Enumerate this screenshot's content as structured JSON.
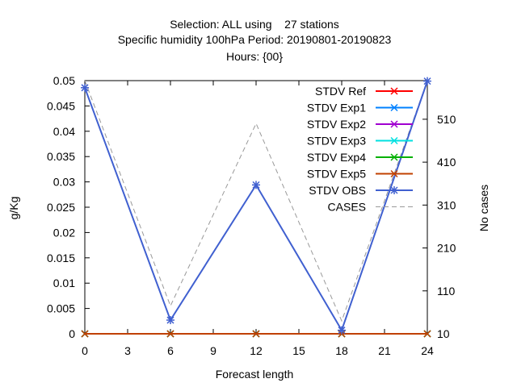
{
  "chart_data": {
    "type": "line",
    "title_lines": [
      "Selection: ALL using    27 stations",
      "Specific humidity 100hPa   Period: 20190801-20190823",
      "Hours: {00}"
    ],
    "xlabel": "Forecast length",
    "ylabel": "g/Kg",
    "y2label": "No cases",
    "xlim": [
      0,
      24
    ],
    "ylim": [
      0,
      0.05
    ],
    "y2lim": [
      10,
      600
    ],
    "x_ticks": [
      0,
      3,
      6,
      9,
      12,
      15,
      18,
      21,
      24
    ],
    "y_ticks": [
      0,
      0.005,
      0.01,
      0.015,
      0.02,
      0.025,
      0.03,
      0.035,
      0.04,
      0.045,
      0.05
    ],
    "y_tick_labels": [
      "0",
      "0.005",
      "0.01",
      "0.015",
      "0.02",
      "0.025",
      "0.03",
      "0.035",
      "0.04",
      "0.045",
      "0.05"
    ],
    "y2_ticks": [
      10,
      110,
      210,
      310,
      410,
      510
    ],
    "legend_position": "top-right",
    "grid": false,
    "x": [
      0,
      6,
      12,
      18,
      24
    ],
    "series": [
      {
        "name": "STDV Ref",
        "color": "#ff0000",
        "marker": "x",
        "axis": "y",
        "values": [
          0,
          0,
          0,
          0,
          0
        ]
      },
      {
        "name": "STDV Exp1",
        "color": "#0080ff",
        "marker": "x",
        "axis": "y",
        "values": [
          0,
          0,
          0,
          0,
          0
        ]
      },
      {
        "name": "STDV Exp2",
        "color": "#a000d0",
        "marker": "x",
        "axis": "y",
        "values": [
          0,
          0,
          0,
          0,
          0
        ]
      },
      {
        "name": "STDV Exp3",
        "color": "#00e0e0",
        "marker": "x",
        "axis": "y",
        "values": [
          0,
          0,
          0,
          0,
          0
        ]
      },
      {
        "name": "STDV Exp4",
        "color": "#00b000",
        "marker": "x",
        "axis": "y",
        "values": [
          0,
          0,
          0,
          0,
          0
        ]
      },
      {
        "name": "STDV Exp5",
        "color": "#c04000",
        "marker": "x",
        "axis": "y",
        "values": [
          0,
          0,
          0,
          0,
          0
        ]
      },
      {
        "name": "STDV OBS",
        "color": "#4060d0",
        "marker": "xplus",
        "axis": "y",
        "values": [
          0.0486,
          0.0027,
          0.0294,
          0.0007,
          0.0499
        ]
      },
      {
        "name": "CASES",
        "color": "#999999",
        "marker": "none",
        "dashed": true,
        "axis": "y2",
        "values": [
          600,
          75,
          500,
          40,
          600
        ]
      }
    ]
  }
}
